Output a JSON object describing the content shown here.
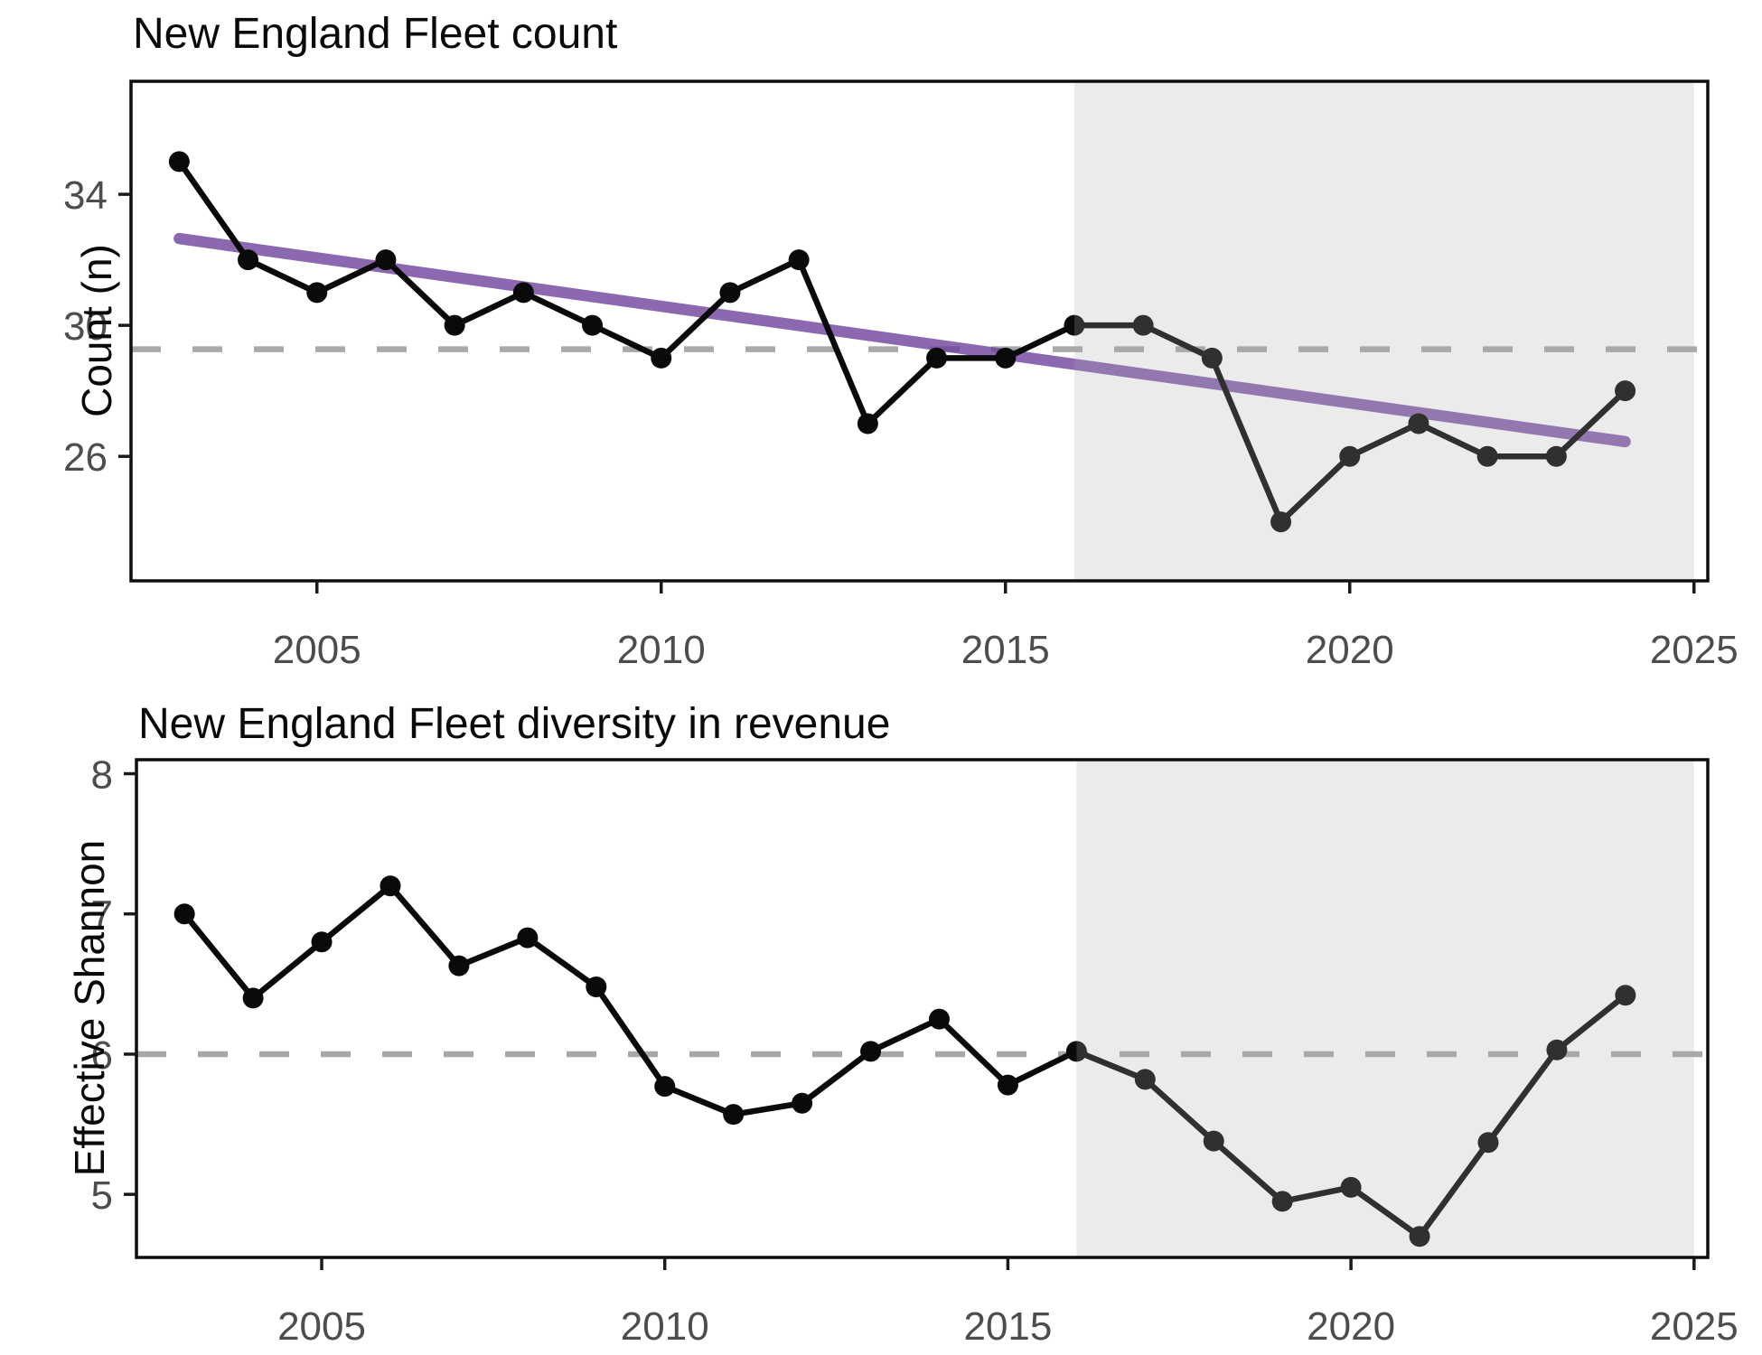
{
  "figure": {
    "background": "#ffffff",
    "n_panels": 2,
    "xlabel": ""
  },
  "colors": {
    "series": "#0a0a0a",
    "trend": "#6a3d9a",
    "mean_dash": "#a8a8a8",
    "shade_overlay": "#acacac",
    "panel_border": "#0d0d0d",
    "tick_label": "#4d4d4d"
  },
  "chart_data": [
    {
      "id": "fleet-count",
      "type": "line",
      "title": "New England Fleet count",
      "xlabel": "",
      "ylabel": "Count (n)",
      "x": [
        2003,
        2004,
        2005,
        2006,
        2007,
        2008,
        2009,
        2010,
        2011,
        2012,
        2013,
        2014,
        2015,
        2016,
        2017,
        2018,
        2019,
        2020,
        2021,
        2022,
        2023,
        2024
      ],
      "series": [
        {
          "name": "fleet-count",
          "values": [
            35,
            32,
            31,
            32,
            30,
            31,
            30,
            29,
            31,
            32,
            27,
            29,
            29,
            30,
            30,
            29,
            24,
            26,
            27,
            26,
            26,
            28
          ],
          "color": "#0a0a0a"
        }
      ],
      "mean_line": {
        "value": 29.27,
        "style": "dashed",
        "color": "#a8a8a8"
      },
      "trend_line": {
        "x0": 2003,
        "y0": 32.65,
        "x1": 2024,
        "y1": 26.45,
        "color": "#6a3d9a",
        "opacity": 0.78
      },
      "shaded_region": {
        "from": 2016,
        "to": 2025
      },
      "xticks": [
        2005,
        2010,
        2015,
        2020,
        2025
      ],
      "yticks": [
        26,
        30,
        34
      ],
      "xlim": [
        2002.3,
        2025.2
      ],
      "ylim": [
        22.2,
        37.45
      ],
      "grid": false,
      "legend": "none"
    },
    {
      "id": "fleet-diversity",
      "type": "line",
      "title": "New England Fleet diversity in revenue",
      "xlabel": "",
      "ylabel": "Effective Shannon",
      "x": [
        2003,
        2004,
        2005,
        2006,
        2007,
        2008,
        2009,
        2010,
        2011,
        2012,
        2013,
        2014,
        2015,
        2016,
        2017,
        2018,
        2019,
        2020,
        2021,
        2022,
        2023,
        2024
      ],
      "series": [
        {
          "name": "effective-shannon",
          "values": [
            7.0,
            6.4,
            6.8,
            7.2,
            6.63,
            6.83,
            6.48,
            5.77,
            5.57,
            5.65,
            6.02,
            6.25,
            5.78,
            6.02,
            5.82,
            5.38,
            4.95,
            5.05,
            4.7,
            5.37,
            6.03,
            6.42
          ],
          "color": "#0a0a0a"
        }
      ],
      "mean_line": {
        "value": 6.0,
        "style": "dashed",
        "color": "#a8a8a8"
      },
      "trend_line": null,
      "shaded_region": {
        "from": 2016,
        "to": 2025
      },
      "xticks": [
        2005,
        2010,
        2015,
        2020,
        2025
      ],
      "yticks": [
        5,
        6,
        7,
        8
      ],
      "xlim": [
        2002.3,
        2025.2
      ],
      "ylim": [
        4.55,
        8.1
      ],
      "grid": false,
      "legend": "none"
    }
  ]
}
